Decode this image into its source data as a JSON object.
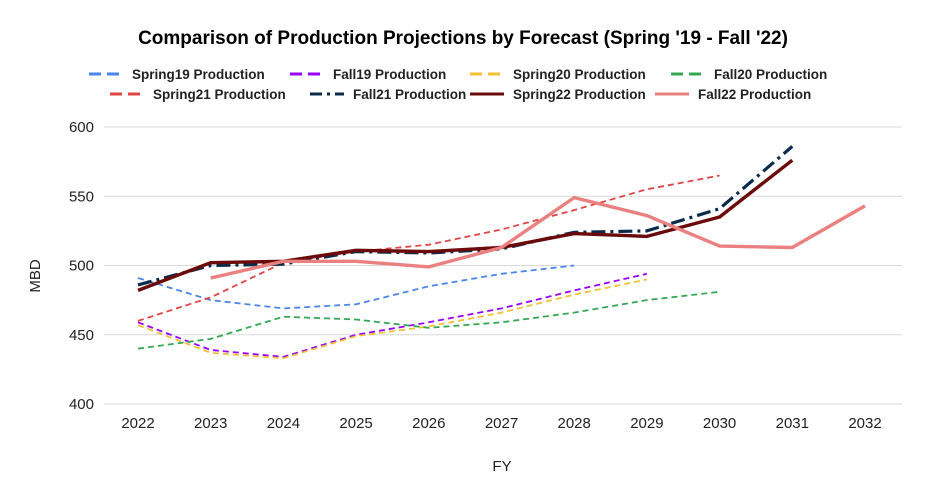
{
  "chart_data": {
    "type": "line",
    "title": "Comparison of Production Projections by Forecast (Spring '19 - Fall '22)",
    "xlabel": "FY",
    "ylabel": "MBD",
    "x": [
      2022,
      2023,
      2024,
      2025,
      2026,
      2027,
      2028,
      2029,
      2030,
      2031,
      2032
    ],
    "x_tick_labels": [
      "2022",
      "2023",
      "2024",
      "2025",
      "2026",
      "2027",
      "2028",
      "2029",
      "2030",
      "2031",
      "2032"
    ],
    "ylim": [
      400,
      600
    ],
    "y_ticks": [
      400,
      450,
      500,
      550,
      600
    ],
    "y_tick_labels": [
      "400",
      "450",
      "500",
      "550",
      "600"
    ],
    "grid": "horizontal",
    "legend_position": "top",
    "series": [
      {
        "name": "Spring19 Production",
        "color": "#4a86e8",
        "style": "dashed",
        "values": [
          491,
          475,
          469,
          472,
          485,
          494,
          500,
          null,
          null,
          null,
          null
        ]
      },
      {
        "name": "Fall19 Production",
        "color": "#9900ff",
        "style": "dashed",
        "values": [
          459,
          439,
          434,
          450,
          459,
          469,
          482,
          494,
          null,
          null,
          null
        ]
      },
      {
        "name": "Spring20 Production",
        "color": "#f1c232",
        "style": "dashed",
        "values": [
          457,
          437,
          433,
          449,
          456,
          466,
          479,
          490,
          null,
          null,
          null
        ]
      },
      {
        "name": "Fall20 Production",
        "color": "#34a853",
        "style": "dashed",
        "values": [
          440,
          447,
          463,
          461,
          455,
          459,
          466,
          475,
          481,
          null,
          null
        ]
      },
      {
        "name": "Spring21 Production",
        "color": "#e04545",
        "style": "dashed",
        "values": [
          460,
          477,
          502,
          510,
          515,
          526,
          540,
          555,
          565,
          null,
          null
        ]
      },
      {
        "name": "Fall21 Production",
        "color": "#0b2b4b",
        "style": "dashdot",
        "values": [
          486,
          500,
          501,
          510,
          509,
          512,
          524,
          525,
          541,
          586,
          null
        ]
      },
      {
        "name": "Spring22 Production",
        "color": "#6b0a0a",
        "style": "solid",
        "values": [
          482,
          502,
          503,
          511,
          510,
          513,
          523,
          521,
          535,
          576,
          null
        ]
      },
      {
        "name": "Fall22 Production",
        "color": "#ea8080",
        "style": "solid",
        "values": [
          null,
          491,
          503,
          503,
          499,
          513,
          549,
          536,
          514,
          513,
          543
        ]
      }
    ]
  }
}
